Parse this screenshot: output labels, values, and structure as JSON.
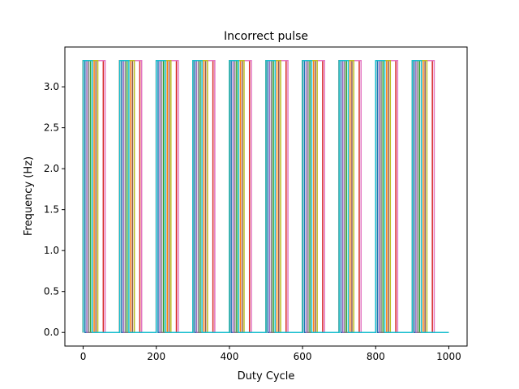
{
  "chart_data": {
    "type": "line",
    "title": "Incorrect pulse",
    "xlabel": "Duty Cycle",
    "ylabel": "Frequency (Hz)",
    "xlim": [
      -50,
      1050
    ],
    "ylim": [
      -0.166,
      3.486
    ],
    "xticks": [
      0,
      200,
      400,
      600,
      800,
      1000
    ],
    "xtick_labels": [
      "0",
      "200",
      "400",
      "600",
      "800",
      "1000"
    ],
    "yticks": [
      0.0,
      0.5,
      1.0,
      1.5,
      2.0,
      2.5,
      3.0
    ],
    "ytick_labels": [
      "0.0",
      "0.5",
      "1.0",
      "1.5",
      "2.0",
      "2.5",
      "3.0"
    ],
    "grid": false,
    "legend": "none",
    "amplitude": 3.32,
    "series": [
      {
        "color": "#1f77b4",
        "x": [
          0,
          100,
          200,
          300,
          400,
          500,
          600,
          700,
          800,
          900,
          1000
        ],
        "duty": 0.05
      },
      {
        "color": "#ff7f0e",
        "x": [
          0,
          100,
          200,
          300,
          400,
          500,
          600,
          700,
          800,
          900,
          1000
        ],
        "duty": 0.3
      },
      {
        "color": "#2ca02c",
        "x": [
          0,
          100,
          200,
          300,
          400,
          500,
          600,
          700,
          800,
          900,
          1000
        ],
        "duty": 0.2
      },
      {
        "color": "#d62728",
        "x": [
          0,
          100,
          200,
          300,
          400,
          500,
          600,
          700,
          800,
          900,
          1000
        ],
        "duty": 0.55
      },
      {
        "color": "#9467bd",
        "x": [
          0,
          100,
          200,
          300,
          400,
          500,
          600,
          700,
          800,
          900,
          1000
        ],
        "duty": 0.1
      },
      {
        "color": "#8c564b",
        "x": [
          0,
          100,
          200,
          300,
          400,
          500,
          600,
          700,
          800,
          900,
          1000
        ],
        "duty": 0.35
      },
      {
        "color": "#e377c2",
        "x": [
          0,
          100,
          200,
          300,
          400,
          500,
          600,
          700,
          800,
          900,
          1000
        ],
        "duty": 0.6
      },
      {
        "color": "#7f7f7f",
        "x": [
          0,
          100,
          200,
          300,
          400,
          500,
          600,
          700,
          800,
          900,
          1000
        ],
        "duty": 0.15
      },
      {
        "color": "#bcbd22",
        "x": [
          0,
          100,
          200,
          300,
          400,
          500,
          600,
          700,
          800,
          900,
          1000
        ],
        "duty": 0.4
      },
      {
        "color": "#17becf",
        "x": [
          0,
          100,
          200,
          300,
          400,
          500,
          600,
          700,
          800,
          900,
          1000
        ],
        "duty": 0.25
      }
    ]
  }
}
